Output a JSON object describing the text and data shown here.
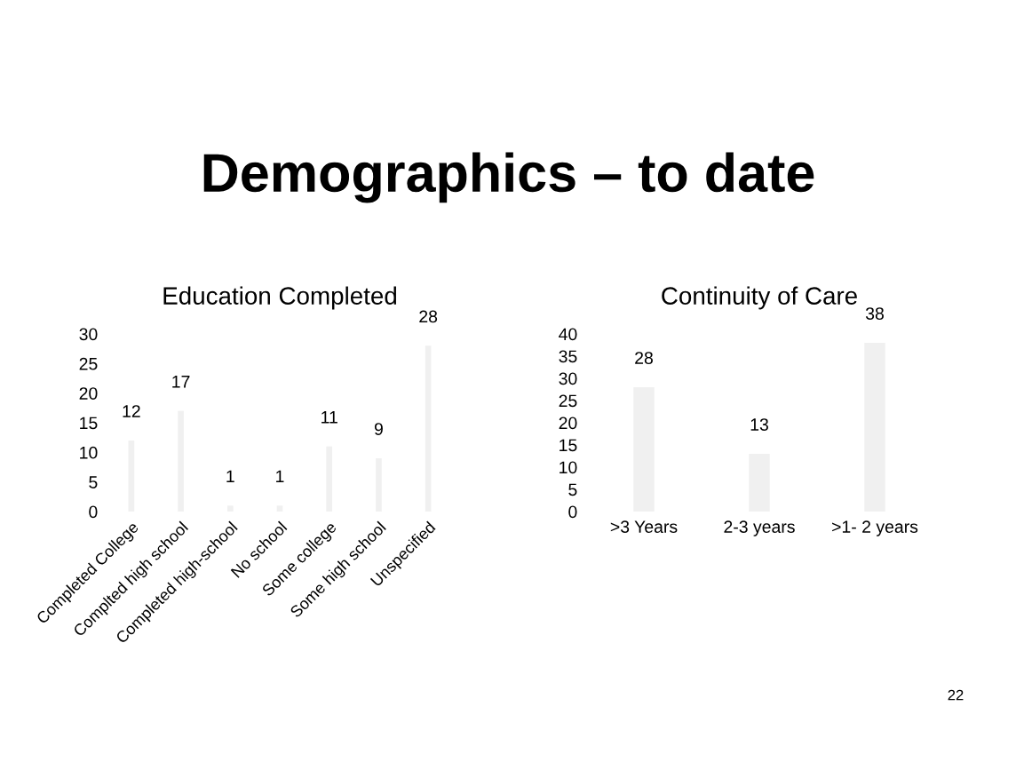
{
  "chart_data": [
    {
      "type": "bar",
      "title": "Education Completed",
      "categories": [
        "Completed College",
        "Complted high school",
        "Completed high-school",
        "No school",
        "Some college",
        "Some high school",
        "Unspecified"
      ],
      "values": [
        12,
        17,
        1,
        1,
        11,
        9,
        28
      ],
      "color": "#f0f0f0",
      "ylim": [
        0,
        30
      ],
      "yticks": [
        0,
        5,
        10,
        15,
        20,
        25,
        30
      ],
      "data_labels": true,
      "grid": false,
      "annotations": [
        "Demographics – to date"
      ]
    },
    {
      "type": "bar",
      "title": "Continuity of Care",
      "categories": [
        ">3 Years",
        "2-3 years",
        ">1- 2 years"
      ],
      "values": [
        28,
        13,
        38
      ],
      "color": "#f0f0f0",
      "ylim": [
        0,
        40
      ],
      "yticks": [
        0,
        5,
        10,
        15,
        20,
        25,
        30,
        35,
        40
      ],
      "data_labels": true,
      "grid": false,
      "annotations": [
        "22"
      ]
    }
  ]
}
